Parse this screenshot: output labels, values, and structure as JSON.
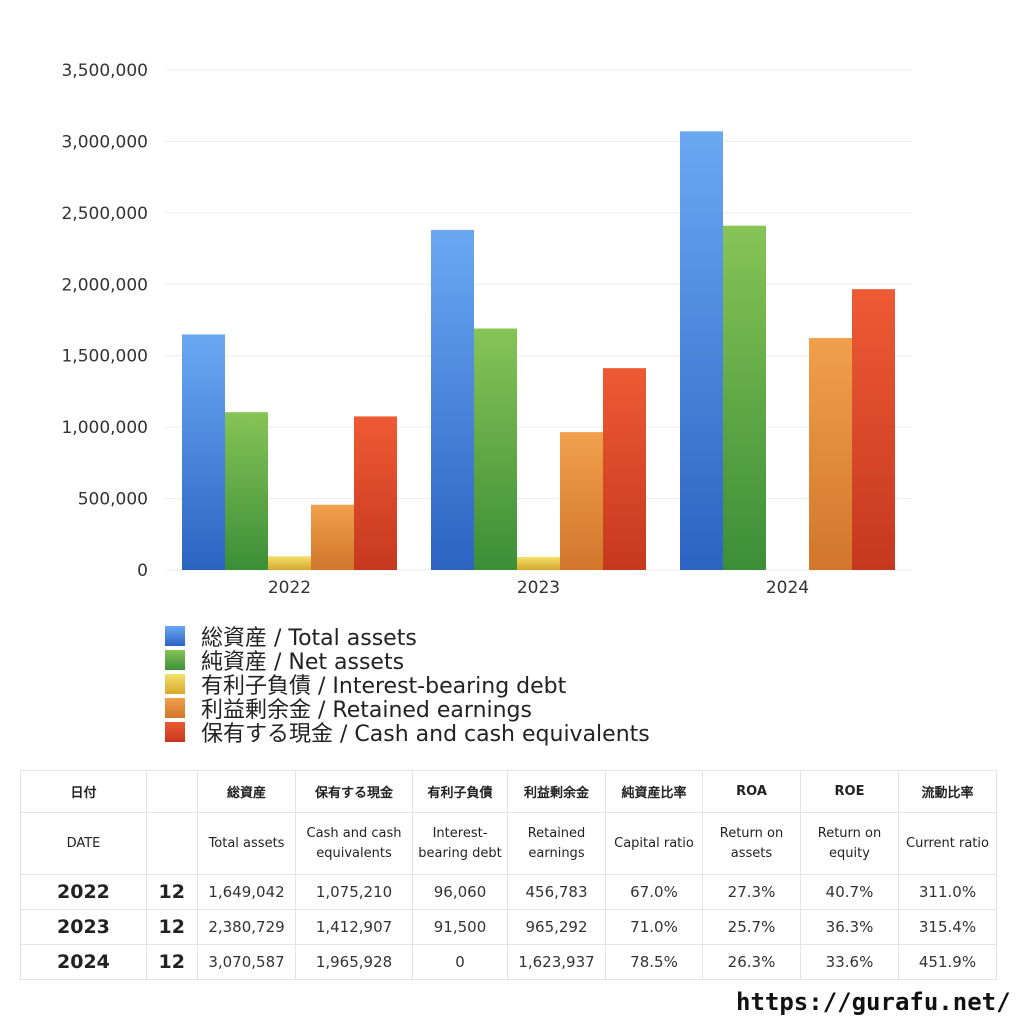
{
  "chart_data": {
    "type": "bar",
    "categories": [
      "2022",
      "2023",
      "2024"
    ],
    "ylim": [
      0,
      3500000
    ],
    "yticks": [
      0,
      500000,
      1000000,
      1500000,
      2000000,
      2500000,
      3000000,
      3500000
    ],
    "ytick_labels": [
      "0",
      "500,000",
      "1,000,000",
      "1,500,000",
      "2,000,000",
      "2,500,000",
      "3,000,000",
      "3,500,000"
    ],
    "grid": true,
    "legend_position": "bottom",
    "series": [
      {
        "name": "総資産 / Total assets",
        "values": [
          1649042,
          2380729,
          3070587
        ],
        "color_top": "#6aa8f2",
        "color_bottom": "#2c63c3"
      },
      {
        "name": "純資産 / Net assets",
        "values": [
          1104836,
          1690318,
          2410411
        ],
        "color_top": "#86c456",
        "color_bottom": "#3c8e38"
      },
      {
        "name": "有利子負債 / Interest-bearing debt",
        "values": [
          96060,
          91500,
          0
        ],
        "color_top": "#f3e06b",
        "color_bottom": "#d7a82c"
      },
      {
        "name": "利益剰余金 / Retained earnings",
        "values": [
          456783,
          965292,
          1623937
        ],
        "color_top": "#f0a04c",
        "color_bottom": "#d1762b"
      },
      {
        "name": "保有する現金 /  Cash and cash equivalents",
        "values": [
          1075210,
          1412907,
          1965928
        ],
        "color_top": "#ee5a34",
        "color_bottom": "#c6381e"
      }
    ]
  },
  "table": {
    "headers_jp": [
      "日付",
      "",
      "総資産",
      "保有する現金",
      "有利子負債",
      "利益剰余金",
      "純資産比率",
      "ROA",
      "ROE",
      "流動比率"
    ],
    "headers_en": [
      "DATE",
      "",
      "Total assets",
      "Cash and cash equivalents",
      "Interest-bearing debt",
      "Retained earnings",
      "Capital ratio",
      "Return on assets",
      "Return on equity",
      "Current ratio"
    ],
    "rows": [
      [
        "2022",
        "12",
        "1,649,042",
        "1,075,210",
        "96,060",
        "456,783",
        "67.0%",
        "27.3%",
        "40.7%",
        "311.0%"
      ],
      [
        "2023",
        "12",
        "2,380,729",
        "1,412,907",
        "91,500",
        "965,292",
        "71.0%",
        "25.7%",
        "36.3%",
        "315.4%"
      ],
      [
        "2024",
        "12",
        "3,070,587",
        "1,965,928",
        "0",
        "1,623,937",
        "78.5%",
        "26.3%",
        "33.6%",
        "451.9%"
      ]
    ]
  },
  "source": "https://gurafu.net/"
}
